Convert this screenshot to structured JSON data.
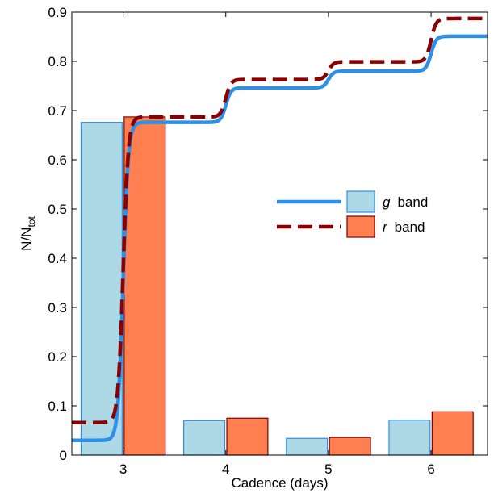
{
  "chart_data": {
    "type": "bar",
    "xlabel": "Cadence (days)",
    "ylabel": {
      "main": "N/N",
      "sub": "tot"
    },
    "ylim": [
      0,
      0.9
    ],
    "xlim": [
      2.5,
      6.55
    ],
    "yticks": [
      "0",
      "0.1",
      "0.2",
      "0.3",
      "0.4",
      "0.5",
      "0.6",
      "0.7",
      "0.8",
      "0.9"
    ],
    "xticks": [
      "3",
      "4",
      "5",
      "6"
    ],
    "categories": [
      3,
      4,
      5,
      6
    ],
    "grid": false,
    "legend": {
      "placement": "center-right",
      "entries": [
        {
          "letter": "g",
          "word": "band"
        },
        {
          "letter": "r",
          "word": "band"
        }
      ]
    },
    "series": [
      {
        "name": "g band",
        "bar_values": [
          0.676,
          0.07,
          0.034,
          0.071
        ],
        "bar_fill": "#add8e6",
        "bar_stroke": "#2e8fe8",
        "line_color": "#2e8fe8",
        "line_style": "solid",
        "cumulative": {
          "base": 0.03,
          "steps": [
            [
              3.0,
              0.676
            ],
            [
              4.0,
              0.746
            ],
            [
              5.0,
              0.78
            ],
            [
              6.0,
              0.851
            ]
          ]
        }
      },
      {
        "name": "r band",
        "bar_values": [
          0.687,
          0.075,
          0.036,
          0.088
        ],
        "bar_fill": "#ff7f50",
        "bar_stroke": "#7a0000",
        "line_color": "#8b0000",
        "line_style": "dashed",
        "cumulative": {
          "base": 0.066,
          "steps": [
            [
              3.0,
              0.687
            ],
            [
              4.0,
              0.763
            ],
            [
              5.0,
              0.799
            ],
            [
              6.0,
              0.887
            ]
          ]
        }
      }
    ]
  }
}
